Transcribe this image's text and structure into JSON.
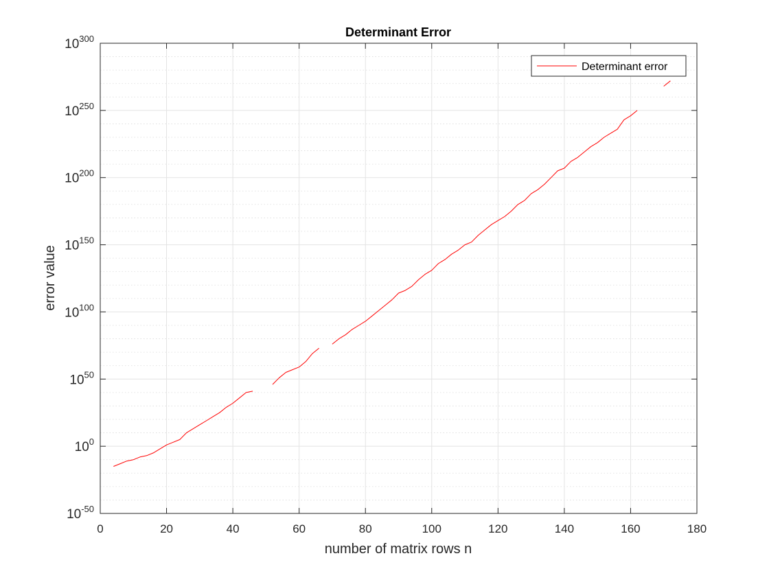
{
  "chart_data": {
    "type": "line",
    "title": "Determinant Error",
    "xlabel": "number of matrix rows n",
    "ylabel": "error value",
    "xlim": [
      0,
      180
    ],
    "ylim_log10": [
      -50,
      300
    ],
    "yscale": "log",
    "grid": true,
    "minor_grid": true,
    "legend_placement": "top-right",
    "x_ticks": [
      0,
      20,
      40,
      60,
      80,
      100,
      120,
      140,
      160,
      180
    ],
    "y_ticks": [
      {
        "base": "10",
        "exp": "-50"
      },
      {
        "base": "10",
        "exp": "0"
      },
      {
        "base": "10",
        "exp": "50"
      },
      {
        "base": "10",
        "exp": "100"
      },
      {
        "base": "10",
        "exp": "150"
      },
      {
        "base": "10",
        "exp": "200"
      },
      {
        "base": "10",
        "exp": "250"
      },
      {
        "base": "10",
        "exp": "300"
      }
    ],
    "series": [
      {
        "name": "Determinant error",
        "color": "#ff0000",
        "segments": [
          [
            [
              4,
              -15
            ],
            [
              6,
              -13
            ],
            [
              8,
              -11
            ],
            [
              10,
              -10
            ],
            [
              12,
              -8
            ],
            [
              14,
              -7
            ],
            [
              16,
              -5
            ],
            [
              18,
              -2
            ],
            [
              20,
              1
            ],
            [
              22,
              3
            ],
            [
              24,
              5
            ],
            [
              26,
              10
            ],
            [
              28,
              13
            ],
            [
              30,
              16
            ],
            [
              32,
              19
            ],
            [
              34,
              22
            ],
            [
              36,
              25
            ],
            [
              38,
              29
            ],
            [
              40,
              32
            ],
            [
              42,
              36
            ],
            [
              44,
              40
            ],
            [
              46,
              41
            ]
          ],
          [
            [
              52,
              46
            ],
            [
              54,
              51
            ],
            [
              56,
              55
            ],
            [
              58,
              57
            ],
            [
              60,
              59
            ],
            [
              62,
              63
            ],
            [
              64,
              69
            ],
            [
              66,
              73
            ]
          ],
          [
            [
              70,
              76
            ],
            [
              72,
              80
            ],
            [
              74,
              83
            ],
            [
              76,
              87
            ],
            [
              78,
              90
            ],
            [
              80,
              93
            ],
            [
              82,
              97
            ],
            [
              84,
              101
            ],
            [
              86,
              105
            ],
            [
              88,
              109
            ],
            [
              90,
              114
            ],
            [
              92,
              116
            ],
            [
              94,
              119
            ],
            [
              96,
              124
            ],
            [
              98,
              128
            ],
            [
              100,
              131
            ],
            [
              102,
              136
            ],
            [
              104,
              139
            ],
            [
              106,
              143
            ],
            [
              108,
              146
            ],
            [
              110,
              150
            ],
            [
              112,
              152
            ],
            [
              114,
              157
            ],
            [
              116,
              161
            ],
            [
              118,
              165
            ],
            [
              120,
              168
            ],
            [
              122,
              171
            ],
            [
              124,
              175
            ],
            [
              126,
              180
            ],
            [
              128,
              183
            ],
            [
              130,
              188
            ],
            [
              132,
              191
            ],
            [
              134,
              195
            ],
            [
              136,
              200
            ],
            [
              138,
              205
            ],
            [
              140,
              207
            ],
            [
              142,
              212
            ],
            [
              144,
              215
            ],
            [
              146,
              219
            ],
            [
              148,
              223
            ],
            [
              150,
              226
            ],
            [
              152,
              230
            ],
            [
              154,
              233
            ],
            [
              156,
              236
            ],
            [
              158,
              243
            ],
            [
              160,
              246
            ],
            [
              162,
              250
            ]
          ],
          [
            [
              170,
              268
            ],
            [
              172,
              272
            ]
          ]
        ]
      }
    ]
  }
}
